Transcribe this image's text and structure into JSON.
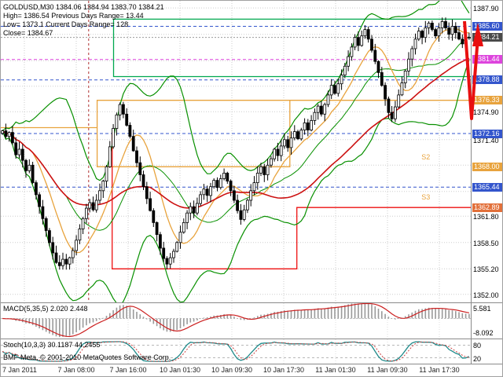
{
  "header": {
    "line1": "GOLDUSD,M30 1384.06 1384.94 1383.70 1384.21",
    "line2": "High= 1386.54   Previous Days Range= 13.44",
    "line3": "Low= 1373.1   Current Days Range= 128",
    "line4": "Close= 1384.67"
  },
  "footer": {
    "copyright": "BMF-Meta, © 2001-2010 MetaQuotes Software Corp."
  },
  "time_axis": [
    "7 Jan 2011",
    "7 Jan 08:00",
    "7 Jan 16:00",
    "10 Jan 01:30",
    "10 Jan 09:30",
    "10 Jan 17:30",
    "11 Jan 01:30",
    "11 Jan 09:30",
    "11 Jan 17:30"
  ],
  "price_axis": {
    "min": 1351.0,
    "max": 1388.8,
    "grid_prices": [
      1387.9,
      1384.6,
      1381.3,
      1378.1,
      1374.9,
      1371.4,
      1368.2,
      1364.9,
      1361.8,
      1358.5,
      1355.2,
      1352.0
    ],
    "plain_labels": [
      {
        "price": 1387.9,
        "label": "1387.90"
      },
      {
        "price": 1374.9,
        "label": "1374.90"
      },
      {
        "price": 1371.4,
        "label": "1371.40"
      },
      {
        "price": 1361.8,
        "label": "1361.80"
      },
      {
        "price": 1358.5,
        "label": "1358.50"
      },
      {
        "price": 1355.2,
        "label": "1355.20"
      },
      {
        "price": 1352.0,
        "label": "1352.00"
      }
    ],
    "badges": [
      {
        "price": 1385.6,
        "label": "1385.60",
        "color": "#3355cc"
      },
      {
        "price": 1384.21,
        "label": "1384.21",
        "color": "#4a4a4a"
      },
      {
        "price": 1381.44,
        "label": "1381.44",
        "color": "#dd44dd"
      },
      {
        "price": 1378.88,
        "label": "1378.88",
        "color": "#3355cc"
      },
      {
        "price": 1376.33,
        "label": "1376.33",
        "color": "#e8a33d"
      },
      {
        "price": 1372.16,
        "label": "1372.16",
        "color": "#3355cc"
      },
      {
        "price": 1368.0,
        "label": "1368.00",
        "color": "#e8a33d"
      },
      {
        "price": 1365.44,
        "label": "1365.44",
        "color": "#3355cc"
      },
      {
        "price": 1362.89,
        "label": "1362.89",
        "color": "#e2703a"
      }
    ]
  },
  "macd": {
    "label": "MACD(5,35,5) 2.020 2.448",
    "axis_top": "5.581",
    "axis_bottom": "-8.092",
    "range": [
      7.5,
      -9.8
    ]
  },
  "stoch": {
    "label": "Stoch(10,3,3) 30.1187 44.2455",
    "levels": [
      {
        "value": 80,
        "label": "80"
      },
      {
        "value": 20,
        "label": "20"
      }
    ]
  },
  "chart_data": {
    "type": "candlestick",
    "symbol": "GOLDUSD",
    "timeframe": "M30",
    "title": "GOLDUSD,M30",
    "y_range": [
      1351.0,
      1388.8
    ],
    "x_labels": [
      "7 Jan 2011",
      "7 Jan 08:00",
      "7 Jan 16:00",
      "10 Jan 01:30",
      "10 Jan 09:30",
      "10 Jan 17:30",
      "11 Jan 01:30",
      "11 Jan 09:30",
      "11 Jan 17:30"
    ],
    "current_bar": {
      "open": 1384.06,
      "high": 1384.94,
      "low": 1383.7,
      "close": 1384.21
    },
    "day_stats": {
      "high": 1386.54,
      "low": 1373.1,
      "prev_range": 13.44,
      "close": 1384.67
    },
    "closes": [
      1372.5,
      1371.8,
      1372.3,
      1371.0,
      1369.5,
      1370.2,
      1368.8,
      1367.5,
      1368.2,
      1366.0,
      1364.5,
      1363.0,
      1361.5,
      1360.0,
      1358.5,
      1357.2,
      1356.0,
      1355.6,
      1356.4,
      1355.8,
      1356.6,
      1357.5,
      1358.8,
      1360.2,
      1361.5,
      1362.8,
      1363.5,
      1362.6,
      1363.8,
      1365.0,
      1366.2,
      1368.0,
      1370.5,
      1372.8,
      1374.5,
      1375.8,
      1374.6,
      1373.2,
      1371.8,
      1370.0,
      1368.5,
      1367.0,
      1365.5,
      1364.0,
      1362.5,
      1361.0,
      1359.5,
      1357.8,
      1356.5,
      1355.8,
      1356.6,
      1357.4,
      1358.5,
      1359.8,
      1361.0,
      1362.2,
      1363.0,
      1362.2,
      1363.4,
      1364.5,
      1365.2,
      1364.4,
      1365.5,
      1366.3,
      1365.4,
      1366.5,
      1367.2,
      1366.2,
      1365.0,
      1363.8,
      1362.5,
      1361.4,
      1362.6,
      1363.8,
      1365.0,
      1366.0,
      1367.2,
      1368.0,
      1367.0,
      1368.2,
      1369.0,
      1370.2,
      1369.4,
      1370.6,
      1371.4,
      1370.4,
      1371.6,
      1372.4,
      1371.5,
      1372.6,
      1373.5,
      1372.6,
      1373.8,
      1374.8,
      1375.6,
      1374.6,
      1375.8,
      1377.0,
      1378.2,
      1377.2,
      1378.4,
      1379.5,
      1380.6,
      1381.8,
      1383.0,
      1384.2,
      1383.2,
      1384.4,
      1385.2,
      1384.0,
      1382.6,
      1381.2,
      1379.8,
      1378.2,
      1376.5,
      1374.8,
      1374.0,
      1375.5,
      1377.0,
      1378.5,
      1380.0,
      1381.5,
      1382.8,
      1384.0,
      1385.0,
      1384.2,
      1385.4,
      1386.0,
      1385.2,
      1384.4,
      1385.4,
      1386.2,
      1385.4,
      1384.6,
      1385.6,
      1384.8,
      1384.0,
      1383.4,
      1384.2,
      1384.21
    ],
    "levels": [
      {
        "price": 1385.6,
        "color": "#3355cc",
        "dash": "4,3",
        "x1": 0,
        "x2": 1
      },
      {
        "price": 1381.44,
        "color": "#dd44dd",
        "dash": "4,3",
        "x1": 0,
        "x2": 1
      },
      {
        "price": 1378.88,
        "color": "#3355cc",
        "dash": "4,3",
        "x1": 0,
        "x2": 1
      },
      {
        "price": 1372.16,
        "color": "#3355cc",
        "dash": "4,3",
        "x1": 0,
        "x2": 1
      },
      {
        "price": 1365.44,
        "color": "#3355cc",
        "dash": "4,3",
        "x1": 0,
        "x2": 1
      },
      {
        "price": 1384.21,
        "color": "#9a9a9a",
        "dash": "2,2",
        "x1": 0,
        "x2": 1
      }
    ],
    "steps": [
      {
        "name": "green-range-box",
        "color": "#00a84f",
        "pts": [
          [
            1.0,
            1386.5
          ],
          [
            0.24,
            1386.5
          ],
          [
            0.24,
            1379.3
          ],
          [
            1.0,
            1379.3
          ]
        ]
      },
      {
        "name": "orange-left-level",
        "color": "#e8a33d",
        "pts": [
          [
            0.0,
            1372.9
          ],
          [
            0.205,
            1372.9
          ]
        ]
      },
      {
        "name": "orange-range-box",
        "color": "#e8a33d",
        "pts": [
          [
            1.0,
            1376.33
          ],
          [
            0.205,
            1376.33
          ],
          [
            0.205,
            1368.0
          ],
          [
            0.615,
            1368.0
          ],
          [
            0.615,
            1376.33
          ]
        ]
      },
      {
        "name": "red-support-steps",
        "color": "#ee1111",
        "pts": [
          [
            0.237,
            1372.3
          ],
          [
            0.237,
            1355.2
          ],
          [
            0.63,
            1355.2
          ],
          [
            0.63,
            1362.89
          ],
          [
            1.0,
            1362.89
          ]
        ]
      }
    ],
    "annotations": {
      "vline_x": 0.187,
      "s_labels": [
        {
          "text": "S2",
          "price": 1368.9,
          "x": 0.895
        },
        {
          "text": "S3",
          "price": 1363.9,
          "x": 0.895
        }
      ],
      "arrow_color": "#e81010"
    },
    "subcharts": [
      {
        "type": "macd_histogram",
        "label": "MACD(5,35,5)",
        "current_values": [
          2.02,
          2.448
        ],
        "axis_values": [
          5.581,
          -8.092
        ]
      },
      {
        "type": "stochastic",
        "label": "Stoch(10,3,3)",
        "current_values": [
          30.1187,
          44.2455
        ],
        "levels": [
          80,
          20
        ]
      }
    ]
  }
}
